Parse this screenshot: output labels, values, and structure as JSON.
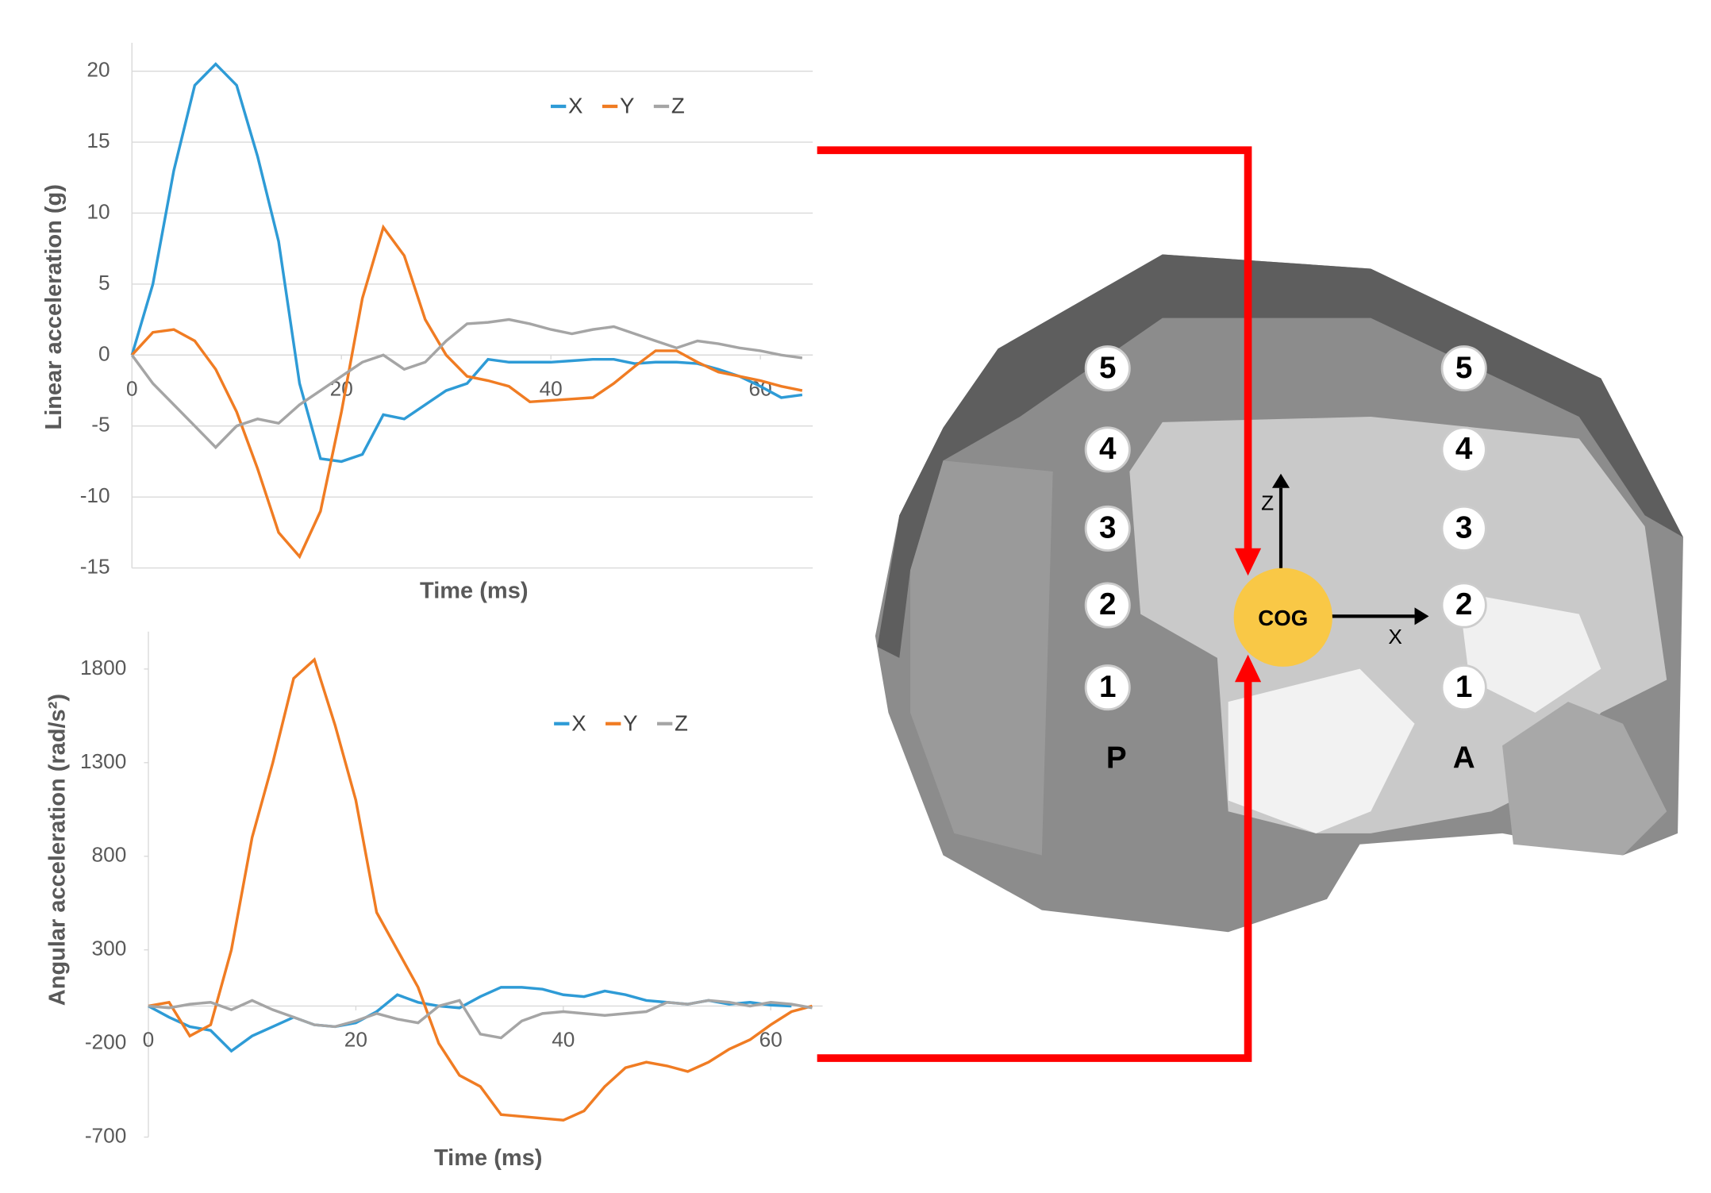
{
  "chart_data": [
    {
      "type": "line",
      "xlabel": "Time (ms)",
      "ylabel": "Linear acceleration  (g)",
      "x": [
        0,
        2,
        4,
        6,
        8,
        10,
        12,
        14,
        16,
        18,
        20,
        22,
        24,
        26,
        28,
        30,
        32,
        34,
        36,
        38,
        40,
        42,
        44,
        46,
        48,
        50,
        52,
        54,
        56,
        58,
        60,
        62,
        64
      ],
      "series": [
        {
          "name": "X",
          "color": "#2e9bd6",
          "values": [
            0,
            5,
            13,
            19,
            20.5,
            19,
            14,
            8,
            -2,
            -7.3,
            -7.5,
            -7,
            -4.2,
            -4.5,
            -3.5,
            -2.5,
            -2,
            -0.3,
            -0.5,
            -0.5,
            -0.5,
            -0.4,
            -0.3,
            -0.3,
            -0.6,
            -0.5,
            -0.5,
            -0.6,
            -1,
            -1.5,
            -2.2,
            -3,
            -2.8
          ]
        },
        {
          "name": "Y",
          "color": "#f07c23",
          "values": [
            0,
            1.6,
            1.8,
            1,
            -1,
            -4,
            -8,
            -12.5,
            -14.2,
            -11,
            -4,
            4,
            9,
            7,
            2.5,
            0,
            -1.5,
            -1.8,
            -2.2,
            -3.3,
            -3.2,
            -3.1,
            -3,
            -2,
            -0.8,
            0.3,
            0.3,
            -0.5,
            -1.2,
            -1.5,
            -1.8,
            -2.2,
            -2.5
          ]
        },
        {
          "name": "Z",
          "color": "#a5a5a5",
          "values": [
            0,
            -2,
            -3.5,
            -5,
            -6.5,
            -5,
            -4.5,
            -4.8,
            -3.5,
            -2.5,
            -1.5,
            -0.5,
            0,
            -1,
            -0.5,
            1,
            2.2,
            2.3,
            2.5,
            2.2,
            1.8,
            1.5,
            1.8,
            2,
            1.5,
            1,
            0.5,
            1,
            0.8,
            0.5,
            0.3,
            0,
            -0.2
          ]
        }
      ],
      "xlim": [
        0,
        65
      ],
      "xticks": [
        0,
        20,
        40,
        60
      ],
      "ylim": [
        -15,
        22
      ],
      "yticks": [
        -15,
        -10,
        -5,
        0,
        5,
        10,
        15,
        20
      ],
      "grid": true
    },
    {
      "type": "line",
      "xlabel": "Time (ms)",
      "ylabel": "Angular acceleration (rad/s²)",
      "x": [
        0,
        2,
        4,
        6,
        8,
        10,
        12,
        14,
        16,
        18,
        20,
        22,
        24,
        26,
        28,
        30,
        32,
        34,
        36,
        38,
        40,
        42,
        44,
        46,
        48,
        50,
        52,
        54,
        56,
        58,
        60,
        62,
        64
      ],
      "series": [
        {
          "name": "X",
          "color": "#2e9bd6",
          "values": [
            0,
            -60,
            -110,
            -130,
            -240,
            -160,
            -110,
            -60,
            -100,
            -110,
            -90,
            -30,
            60,
            20,
            0,
            -10,
            50,
            100,
            100,
            90,
            60,
            50,
            80,
            60,
            30,
            20,
            10,
            30,
            10,
            20,
            5,
            0,
            null
          ]
        },
        {
          "name": "Y",
          "color": "#f07c23",
          "values": [
            0,
            20,
            -160,
            -100,
            300,
            900,
            1300,
            1750,
            1850,
            1500,
            1100,
            500,
            300,
            100,
            -200,
            -370,
            -430,
            -580,
            -590,
            -600,
            -610,
            -560,
            -430,
            -330,
            -300,
            -320,
            -350,
            -300,
            -230,
            -180,
            -100,
            -30,
            0
          ]
        },
        {
          "name": "Z",
          "color": "#a5a5a5",
          "values": [
            0,
            -10,
            10,
            20,
            -20,
            30,
            -20,
            -60,
            -100,
            -110,
            -80,
            -40,
            -70,
            -90,
            0,
            30,
            -150,
            -170,
            -80,
            -40,
            -30,
            -40,
            -50,
            -40,
            -30,
            20,
            10,
            30,
            20,
            0,
            20,
            10,
            -10
          ]
        }
      ],
      "xlim": [
        0,
        65
      ],
      "xticks": [
        0,
        20,
        40,
        60
      ],
      "ylim": [
        -700,
        2000
      ],
      "yticks": [
        -700,
        -200,
        300,
        800,
        1300,
        1800
      ],
      "grid": false
    }
  ],
  "diagram": {
    "left_levels": [
      "5",
      "4",
      "3",
      "2",
      "1"
    ],
    "right_levels": [
      "5",
      "4",
      "3",
      "2",
      "1"
    ],
    "posterior": "P",
    "anterior": "A",
    "center": "COG",
    "z_axis": "Z",
    "x_axis": "X"
  }
}
